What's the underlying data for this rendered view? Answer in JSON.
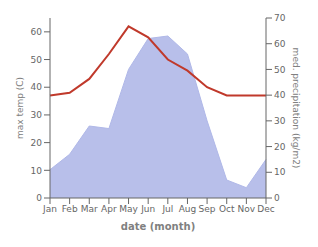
{
  "chart_data": {
    "type": "line",
    "categories": [
      "Jan",
      "Feb",
      "Mar",
      "Apr",
      "May",
      "Jun",
      "Jul",
      "Aug",
      "Sep",
      "Oct",
      "Nov",
      "Dec"
    ],
    "xlabel": "date (month)",
    "ylabel": "max temp (C)",
    "y2label": "med. precipitation (kg/m2)",
    "ylim": [
      0,
      65
    ],
    "yticks": [
      0,
      10,
      20,
      30,
      40,
      50,
      60
    ],
    "y2lim": [
      0,
      70
    ],
    "y2ticks": [
      0,
      10,
      20,
      30,
      40,
      50,
      60,
      70
    ],
    "grid": false,
    "series": [
      {
        "type": "area",
        "axis": "y2",
        "color": "#b0b8e8",
        "values": [
          11,
          17,
          28,
          27,
          50,
          62,
          63,
          56,
          30,
          7,
          4,
          15
        ]
      },
      {
        "type": "line",
        "color": "#c0392b",
        "values": [
          37,
          38,
          43,
          52,
          62,
          58,
          50,
          46,
          40,
          37,
          37,
          37
        ]
      }
    ]
  }
}
